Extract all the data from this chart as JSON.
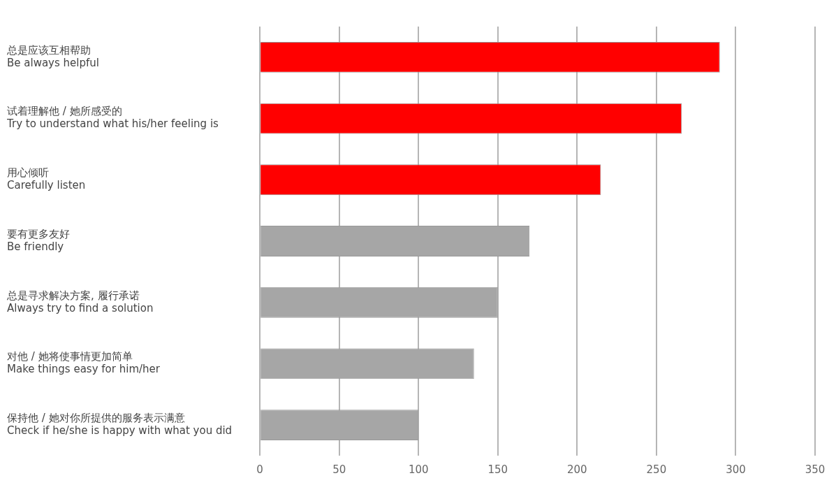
{
  "chart_data": {
    "type": "bar",
    "orientation": "horizontal",
    "categories": [
      "总是应该互相帮助\nBe always helpful",
      "试着理解他 / 她所感受的\nTry to understand what his/her feeling is",
      "用心倾听\nCarefully listen",
      "要有更多友好\nBe friendly",
      "总是寻求解决方案, 履行承诺\nAlways try to find a solution",
      "对他 / 她将使事情更加简单\nMake things easy for him/her",
      "保持他 / 她对你所提供的服务表示满意\nCheck if he/she is happy with what you did"
    ],
    "values": [
      290,
      266,
      215,
      170,
      150,
      135,
      100
    ],
    "colors": [
      "#ff0000",
      "#ff0000",
      "#ff0000",
      "#a6a6a6",
      "#a6a6a6",
      "#a6a6a6",
      "#a6a6a6"
    ],
    "xlim": [
      0,
      350
    ],
    "xticks": [
      0,
      50,
      100,
      150,
      200,
      250,
      300,
      350
    ],
    "grid": "x",
    "legend": false
  }
}
